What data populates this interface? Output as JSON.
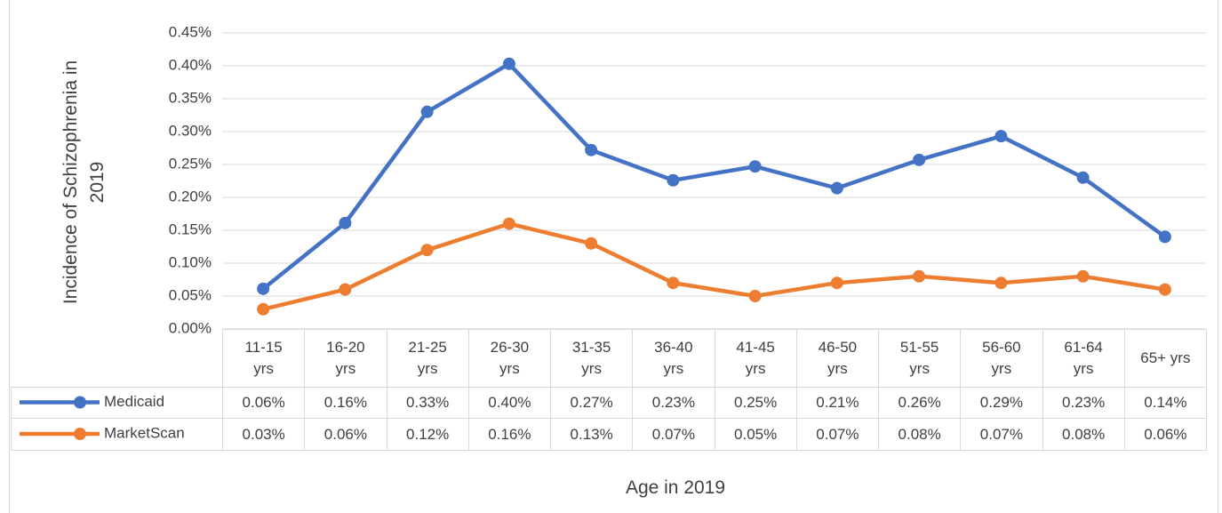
{
  "chart_data": {
    "type": "line",
    "y_label": "Incidence of Schizophrenia in 2019",
    "x_label": "Age in 2019",
    "categories": [
      "11-15 yrs",
      "16-20 yrs",
      "21-25 yrs",
      "26-30 yrs",
      "31-35 yrs",
      "36-40 yrs",
      "41-45 yrs",
      "46-50 yrs",
      "51-55 yrs",
      "56-60 yrs",
      "61-64 yrs",
      "65+ yrs"
    ],
    "series": [
      {
        "name": "Medicaid",
        "color": "#4472c4",
        "values": [
          0.061,
          0.161,
          0.33,
          0.403,
          0.272,
          0.226,
          0.247,
          0.214,
          0.257,
          0.293,
          0.23,
          0.14
        ],
        "value_labels": [
          "0.06%",
          "0.16%",
          "0.33%",
          "0.40%",
          "0.27%",
          "0.23%",
          "0.25%",
          "0.21%",
          "0.26%",
          "0.29%",
          "0.23%",
          "0.14%"
        ]
      },
      {
        "name": "MarketScan",
        "color": "#ed7d31",
        "values": [
          0.03,
          0.06,
          0.12,
          0.16,
          0.13,
          0.07,
          0.05,
          0.07,
          0.08,
          0.07,
          0.08,
          0.06
        ],
        "value_labels": [
          "0.03%",
          "0.06%",
          "0.12%",
          "0.16%",
          "0.13%",
          "0.07%",
          "0.05%",
          "0.07%",
          "0.08%",
          "0.07%",
          "0.08%",
          "0.06%"
        ]
      }
    ],
    "ylim": [
      0,
      0.45
    ],
    "yticks": [
      {
        "value": 0,
        "label": "0.00%"
      },
      {
        "value": 0.05,
        "label": "0.05%"
      },
      {
        "value": 0.1,
        "label": "0.10%"
      },
      {
        "value": 0.15,
        "label": "0.15%"
      },
      {
        "value": 0.2,
        "label": "0.20%"
      },
      {
        "value": 0.25,
        "label": "0.25%"
      },
      {
        "value": 0.3,
        "label": "0.30%"
      },
      {
        "value": 0.35,
        "label": "0.35%"
      },
      {
        "value": 0.4,
        "label": "0.40%"
      },
      {
        "value": 0.45,
        "label": "0.45%"
      }
    ],
    "grid": true
  }
}
